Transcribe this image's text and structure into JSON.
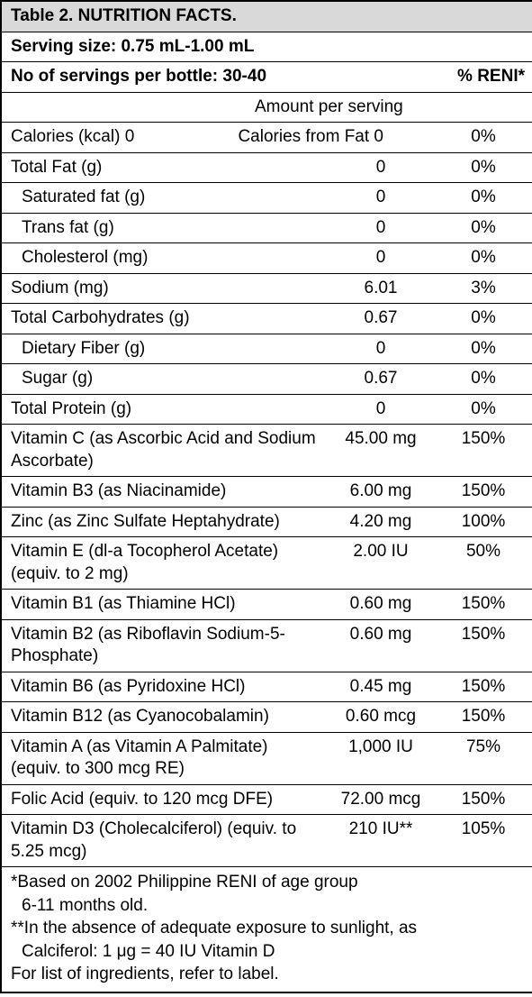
{
  "title": "Table 2. NUTRITION FACTS.",
  "serving_size": "Serving size: 0.75 mL-1.00 mL",
  "servings_per_bottle": "No of servings per bottle: 30-40",
  "reni_header": "% RENI*",
  "amount_header": "Amount per serving",
  "rows": [
    {
      "label": "Calories (kcal) 0",
      "amount": "Calories from Fat 0",
      "reni": "0%"
    },
    {
      "label": "Total Fat (g)",
      "amount": "0",
      "reni": "0%"
    },
    {
      "label": "Saturated fat (g)",
      "amount": "0",
      "reni": "0%",
      "indent": true
    },
    {
      "label": "Trans fat (g)",
      "amount": "0",
      "reni": "0%",
      "indent": true
    },
    {
      "label": "Cholesterol (mg)",
      "amount": "0",
      "reni": "0%",
      "indent": true
    },
    {
      "label": "Sodium (mg)",
      "amount": "6.01",
      "reni": "3%"
    },
    {
      "label": "Total Carbohydrates (g)",
      "amount": "0.67",
      "reni": "0%"
    },
    {
      "label": "Dietary Fiber (g)",
      "amount": "0",
      "reni": "0%",
      "indent": true
    },
    {
      "label": "Sugar (g)",
      "amount": "0.67",
      "reni": "0%",
      "indent": true
    },
    {
      "label": "Total Protein (g)",
      "amount": "0",
      "reni": "0%"
    },
    {
      "label": "Vitamin C (as Ascorbic Acid and Sodium Ascorbate)",
      "amount": "45.00 mg",
      "reni": "150%"
    },
    {
      "label": "Vitamin B3 (as Niacinamide)",
      "amount": "6.00 mg",
      "reni": "150%"
    },
    {
      "label": "Zinc (as Zinc Sulfate Heptahydrate)",
      "amount": "4.20 mg",
      "reni": "100%"
    },
    {
      "label": "Vitamin E (dl-a Tocopherol Acetate) (equiv. to 2 mg)",
      "amount": "2.00 IU",
      "reni": "50%"
    },
    {
      "label": "Vitamin B1 (as Thiamine HCl)",
      "amount": "0.60 mg",
      "reni": "150%"
    },
    {
      "label": "Vitamin B2 (as Riboflavin Sodium-5-Phosphate)",
      "amount": "0.60 mg",
      "reni": "150%"
    },
    {
      "label": "Vitamin B6 (as Pyridoxine HCl)",
      "amount": "0.45 mg",
      "reni": "150%"
    },
    {
      "label": "Vitamin B12 (as Cyanocobalamin)",
      "amount": "0.60 mcg",
      "reni": "150%"
    },
    {
      "label": "Vitamin A (as Vitamin A Palmitate) (equiv. to 300 mcg RE)",
      "amount": "1,000 IU",
      "reni": "75%"
    },
    {
      "label": "Folic Acid (equiv. to 120 mcg DFE)",
      "amount": "72.00 mcg",
      "reni": "150%"
    },
    {
      "label": "Vitamin D3 (Cholecalciferol) (equiv. to 5.25 mcg)",
      "amount": "210 IU**",
      "reni": "105%"
    }
  ],
  "footnotes": [
    {
      "text": "*Based on 2002 Philippine RENI of age group"
    },
    {
      "text": "6-11 months old.",
      "indent": true
    },
    {
      "text": "**In the absence of adequate exposure to sunlight, as"
    },
    {
      "text": "Calciferol: 1 μg = 40 IU Vitamin D",
      "indent": true
    },
    {
      "text": "For list of ingredients, refer to label."
    }
  ]
}
